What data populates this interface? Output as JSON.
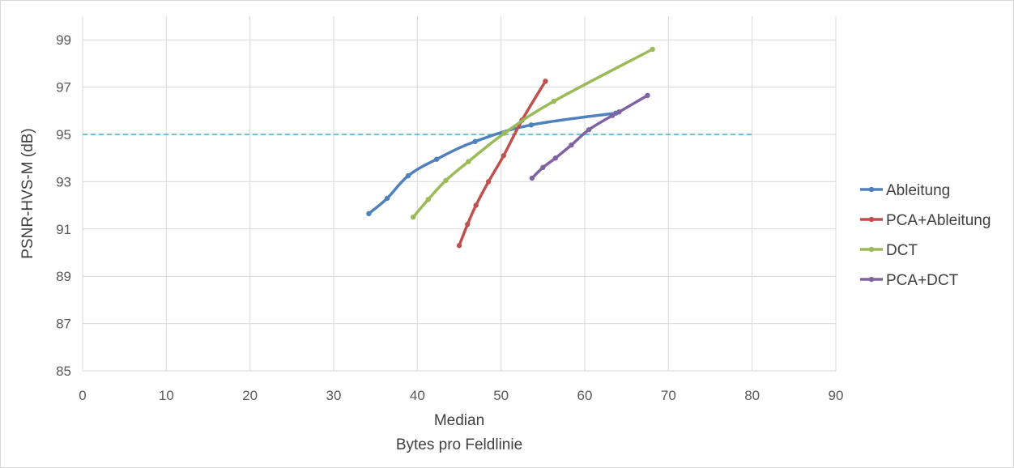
{
  "chart_data": {
    "type": "line",
    "title": "",
    "xlabel": [
      "Median",
      "Bytes pro Feldlinie"
    ],
    "ylabel": "PSNR-HVS-M (dB)",
    "xlim": [
      0,
      90
    ],
    "ylim": [
      85,
      100
    ],
    "x_ticks": [
      "0",
      "10",
      "20",
      "30",
      "40",
      "50",
      "60",
      "70",
      "80",
      "90"
    ],
    "y_ticks": [
      "85",
      "87",
      "89",
      "91",
      "93",
      "95",
      "97",
      "99"
    ],
    "grid": true,
    "legend_position": "right",
    "reference_line": {
      "y": 95,
      "x_range": [
        0,
        80
      ],
      "style": "dashed",
      "color": "#4bacc6"
    },
    "series": [
      {
        "name": "Ableitung",
        "color": "#4f81bd",
        "points": [
          [
            34.2,
            91.65
          ],
          [
            36.4,
            92.3
          ],
          [
            38.9,
            93.25
          ],
          [
            42.3,
            93.95
          ],
          [
            46.9,
            94.7
          ],
          [
            53.6,
            95.4
          ],
          [
            63.7,
            95.9
          ]
        ]
      },
      {
        "name": "PCA+Ableitung",
        "color": "#c0504d",
        "points": [
          [
            45.0,
            90.3
          ],
          [
            46.0,
            91.2
          ],
          [
            47.0,
            92.0
          ],
          [
            48.5,
            93.0
          ],
          [
            50.3,
            94.1
          ],
          [
            52.5,
            95.6
          ],
          [
            55.3,
            97.25
          ]
        ]
      },
      {
        "name": "DCT",
        "color": "#9bbb59",
        "points": [
          [
            39.5,
            91.5
          ],
          [
            41.3,
            92.25
          ],
          [
            43.4,
            93.05
          ],
          [
            46.1,
            93.85
          ],
          [
            50.4,
            95.05
          ],
          [
            56.3,
            96.4
          ],
          [
            68.1,
            98.6
          ]
        ]
      },
      {
        "name": "PCA+DCT",
        "color": "#8064a2",
        "points": [
          [
            53.7,
            93.15
          ],
          [
            55.0,
            93.6
          ],
          [
            56.5,
            94.0
          ],
          [
            58.4,
            94.55
          ],
          [
            60.5,
            95.2
          ],
          [
            63.3,
            95.8
          ],
          [
            64.1,
            95.95
          ],
          [
            67.5,
            96.65
          ]
        ]
      }
    ]
  }
}
